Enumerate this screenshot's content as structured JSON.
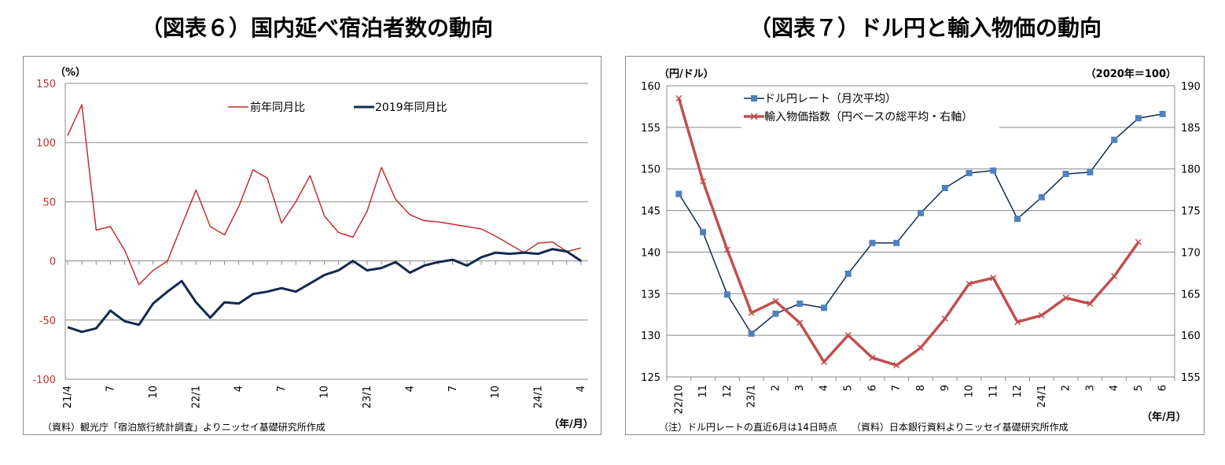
{
  "left": {
    "title": "（図表６）国内延べ宿泊者数の動向",
    "unit_label": "（%）",
    "source": "（資料）観光庁「宿泊旅行統計調査」よりニッセイ基礎研究所作成",
    "xunit": "（年/月）",
    "colors": {
      "series1": "#c0302f",
      "series2": "#13294f",
      "axis_text": "#c0302f"
    }
  },
  "right": {
    "title": "（図表７）ドル円と輸入物価の動向",
    "left_unit": "（円/ドル）",
    "right_unit": "（2020年＝100）",
    "note": "（注）ドル円レートの直近6月は14日時点　　（資料）日本銀行資料よりニッセイ基礎研究所作成",
    "xunit": "（年/月）",
    "colors": {
      "series1": "#13294f",
      "series1_marker": "#4f81bd",
      "series2": "#c0504d"
    }
  },
  "chart_data": [
    {
      "type": "line",
      "title": "（図表６）国内延べ宿泊者数の動向",
      "ylabel": "（%）",
      "xlabel": "（年/月）",
      "ylim": [
        -100,
        150
      ],
      "yticks": [
        150,
        100,
        50,
        0,
        -50,
        -100
      ],
      "x": [
        "21/4",
        "5",
        "6",
        "7",
        "8",
        "9",
        "10",
        "11",
        "12",
        "22/1",
        "2",
        "3",
        "4",
        "5",
        "6",
        "7",
        "8",
        "9",
        "10",
        "11",
        "12",
        "23/1",
        "2",
        "3",
        "4",
        "5",
        "6",
        "7",
        "8",
        "9",
        "10",
        "11",
        "12",
        "24/1",
        "2",
        "3",
        "4"
      ],
      "xtick_labels": [
        {
          "index": 0,
          "label": "21/4"
        },
        {
          "index": 3,
          "label": "7"
        },
        {
          "index": 6,
          "label": "10"
        },
        {
          "index": 9,
          "label": "22/1"
        },
        {
          "index": 12,
          "label": "4"
        },
        {
          "index": 15,
          "label": "7"
        },
        {
          "index": 18,
          "label": "10"
        },
        {
          "index": 21,
          "label": "23/1"
        },
        {
          "index": 24,
          "label": "4"
        },
        {
          "index": 27,
          "label": "7"
        },
        {
          "index": 30,
          "label": "10"
        },
        {
          "index": 33,
          "label": "24/1"
        },
        {
          "index": 36,
          "label": "4"
        }
      ],
      "grid": true,
      "legend_position": "top",
      "series": [
        {
          "name": "前年同月比",
          "values": [
            106,
            132,
            26,
            29,
            9,
            -20,
            -8,
            0,
            30,
            60,
            29,
            22,
            46,
            77,
            70,
            32,
            50,
            72,
            38,
            24,
            20,
            42,
            79,
            52,
            39,
            34,
            33,
            31,
            29,
            27,
            21,
            14,
            7,
            15,
            16,
            8,
            11
          ]
        },
        {
          "name": "2019年同月比",
          "values": [
            -56,
            -60,
            -57,
            -42,
            -51,
            -54,
            -36,
            -26,
            -17,
            -35,
            -48,
            -35,
            -36,
            -28,
            -26,
            -23,
            -26,
            -19,
            -12,
            -8,
            0,
            -8,
            -6,
            -1,
            -10,
            -4,
            -1,
            1,
            -4,
            3,
            7,
            6,
            7,
            6,
            10,
            8,
            0
          ]
        }
      ]
    },
    {
      "type": "line",
      "title": "（図表７）ドル円と輸入物価の動向",
      "ylabel": "（円/ドル）",
      "y2label": "（2020年＝100）",
      "xlabel": "（年/月）",
      "ylim": [
        125,
        160
      ],
      "y2lim": [
        155,
        190
      ],
      "yticks": [
        160,
        155,
        150,
        145,
        140,
        135,
        130,
        125
      ],
      "y2ticks": [
        190,
        185,
        180,
        175,
        170,
        165,
        160,
        155
      ],
      "x": [
        "22/10",
        "11",
        "12",
        "23/1",
        "2",
        "3",
        "4",
        "5",
        "6",
        "7",
        "8",
        "9",
        "10",
        "11",
        "12",
        "24/1",
        "2",
        "3",
        "4",
        "5",
        "6"
      ],
      "grid": true,
      "legend_position": "top-left",
      "series": [
        {
          "name": "ドル円レート（月次平均）",
          "axis": "left",
          "values": [
            147.0,
            142.4,
            134.9,
            130.2,
            132.6,
            133.8,
            133.3,
            137.4,
            141.1,
            141.1,
            144.7,
            147.7,
            149.5,
            149.8,
            144.0,
            146.6,
            149.4,
            149.6,
            153.5,
            156.1,
            156.6
          ]
        },
        {
          "name": "輸入物価指数（円ベースの総平均・右軸）",
          "axis": "right",
          "values": [
            188.5,
            178.5,
            170.3,
            162.7,
            164.1,
            161.5,
            156.8,
            160.0,
            157.3,
            156.4,
            158.5,
            162.0,
            166.2,
            166.9,
            161.6,
            162.4,
            164.5,
            163.8,
            167.1,
            171.2,
            null
          ]
        }
      ]
    }
  ]
}
